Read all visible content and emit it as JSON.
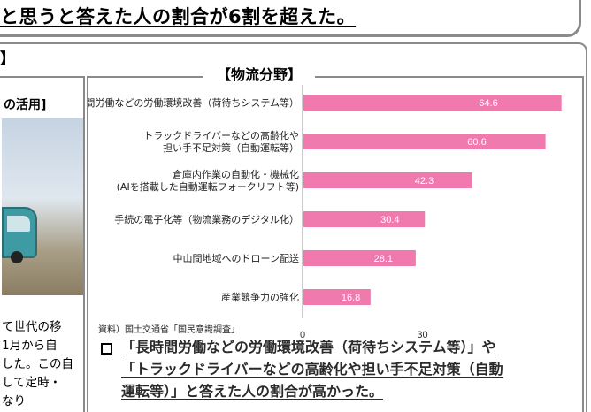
{
  "banner": {
    "text": "と思うと答えた人の割合が6割を超えた。"
  },
  "left": {
    "heading": "】",
    "caption": "の活用]",
    "text_lines": [
      "て世代の移",
      "1月から自",
      "した。この自",
      "して定時・",
      "なり"
    ]
  },
  "chart_data": {
    "type": "bar",
    "orientation": "horizontal",
    "title": "【物流分野】",
    "categories": [
      [
        "長時間労働などの労働環境改善（荷待ちシステム等）"
      ],
      [
        "トラックドライバーなどの高齢化や",
        "担い手不足対策（自動運転等）"
      ],
      [
        "倉庫内作業の自動化・機械化",
        "(AIを搭載した自動運転フォークリフト等)"
      ],
      [
        "手続の電子化等（物流業務のデジタル化）"
      ],
      [
        "中山間地域へのドローン配送"
      ],
      [
        "産業競争力の強化"
      ]
    ],
    "values": [
      64.6,
      60.6,
      42.3,
      30.4,
      28.1,
      16.8
    ],
    "value_labels": [
      "64.6",
      "60.6",
      "42.3",
      "30.4",
      "28.1",
      "16.8"
    ],
    "xlim": [
      0,
      66
    ],
    "xticks": [
      0,
      30
    ],
    "bar_color": "#f07aae",
    "value_label_color": "#ffffff"
  },
  "source": "資料）国土交通省「国民意識調査」",
  "bullet": {
    "lines": [
      "「長時間労働などの労働環境改善（荷待ちシステム等）」や",
      "「トラックドライバーなどの高齢化や担い手不足対策（自動",
      "運転等）」と答えた人の割合が高かった。"
    ]
  }
}
